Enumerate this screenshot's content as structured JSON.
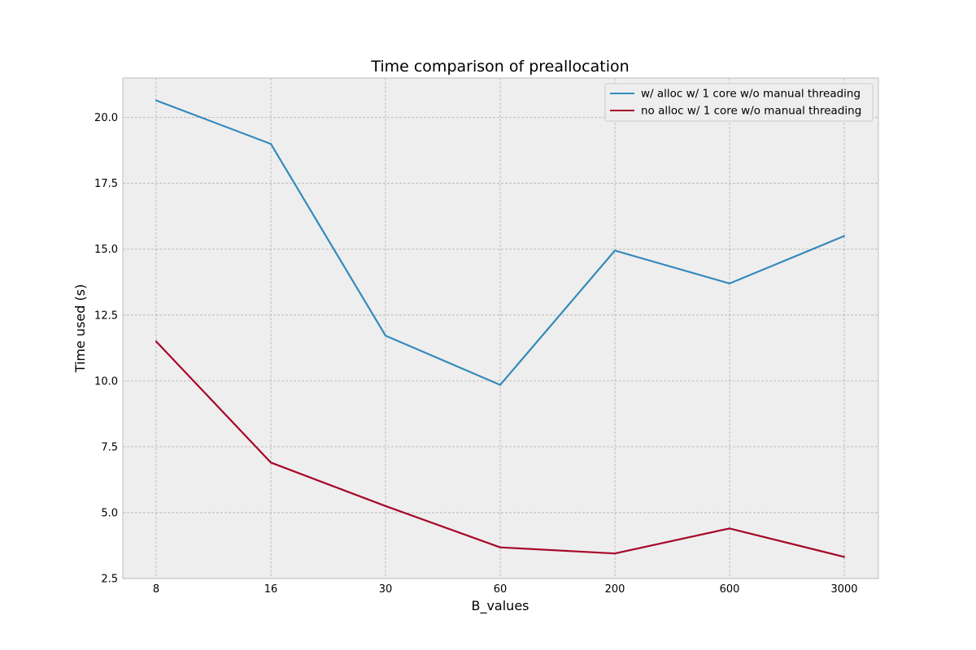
{
  "chart_data": {
    "type": "line",
    "title": "Time comparison of preallocation",
    "xlabel": "B_values",
    "ylabel": "Time used (s)",
    "categories": [
      "8",
      "16",
      "30",
      "60",
      "200",
      "600",
      "3000"
    ],
    "ylim": [
      2.5,
      21.5
    ],
    "yticks": [
      "2.5",
      "5.0",
      "7.5",
      "10.0",
      "12.5",
      "15.0",
      "17.5",
      "20.0"
    ],
    "grid": true,
    "legend_position": "top-right",
    "series": [
      {
        "name": "w/ alloc w/ 1 core w/o manual threading",
        "color": "#348abd",
        "values": [
          20.65,
          19.0,
          11.72,
          9.85,
          14.95,
          13.7,
          15.5
        ]
      },
      {
        "name": "no alloc w/ 1 core w/o manual threading",
        "color": "#a60628",
        "values": [
          11.5,
          6.9,
          5.25,
          3.68,
          3.45,
          4.4,
          3.32
        ]
      }
    ]
  }
}
